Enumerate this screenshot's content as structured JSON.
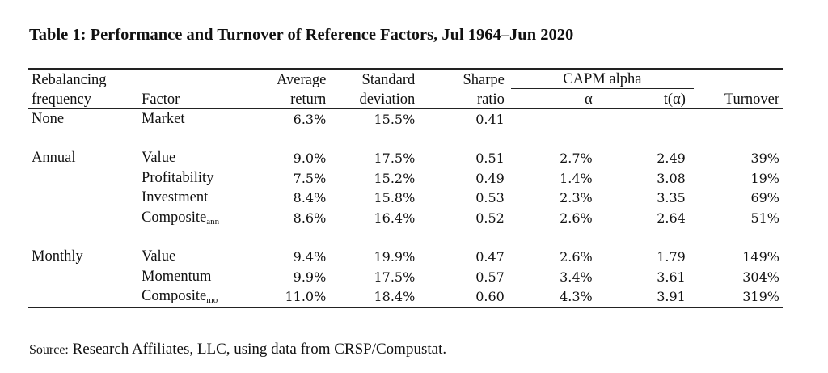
{
  "title": "Table 1: Performance and Turnover of Reference Factors, Jul 1964–Jun 2020",
  "headers": {
    "rebalancing_line1": "Rebalancing",
    "rebalancing_line2": "frequency",
    "factor": "Factor",
    "avg_line1": "Average",
    "avg_line2": "return",
    "std_line1": "Standard",
    "std_line2": "deviation",
    "sharpe_line1": "Sharpe",
    "sharpe_line2": "ratio",
    "capm": "CAPM alpha",
    "alpha": "α",
    "talpha": "t(α)",
    "turnover": "Turnover"
  },
  "rows": [
    {
      "freq": "None",
      "factor": "Market",
      "sub": "",
      "avg": "6.3%",
      "std": "15.5%",
      "sharpe": "0.41",
      "alpha": "",
      "t": "",
      "turnover": ""
    },
    {
      "freq": "Annual",
      "factor": "Value",
      "sub": "",
      "avg": "9.0%",
      "std": "17.5%",
      "sharpe": "0.51",
      "alpha": "2.7%",
      "t": "2.49",
      "turnover": "39%"
    },
    {
      "freq": "",
      "factor": "Profitability",
      "sub": "",
      "avg": "7.5%",
      "std": "15.2%",
      "sharpe": "0.49",
      "alpha": "1.4%",
      "t": "3.08",
      "turnover": "19%"
    },
    {
      "freq": "",
      "factor": "Investment",
      "sub": "",
      "avg": "8.4%",
      "std": "15.8%",
      "sharpe": "0.53",
      "alpha": "2.3%",
      "t": "3.35",
      "turnover": "69%"
    },
    {
      "freq": "",
      "factor": "Composite",
      "sub": "ann",
      "avg": "8.6%",
      "std": "16.4%",
      "sharpe": "0.52",
      "alpha": "2.6%",
      "t": "2.64",
      "turnover": "51%"
    },
    {
      "freq": "Monthly",
      "factor": "Value",
      "sub": "",
      "avg": "9.4%",
      "std": "19.9%",
      "sharpe": "0.47",
      "alpha": "2.6%",
      "t": "1.79",
      "turnover": "149%"
    },
    {
      "freq": "",
      "factor": "Momentum",
      "sub": "",
      "avg": "9.9%",
      "std": "17.5%",
      "sharpe": "0.57",
      "alpha": "3.4%",
      "t": "3.61",
      "turnover": "304%"
    },
    {
      "freq": "",
      "factor": "Composite",
      "sub": "mo",
      "avg": "11.0%",
      "std": "18.4%",
      "sharpe": "0.60",
      "alpha": "4.3%",
      "t": "3.91",
      "turnover": "319%"
    }
  ],
  "source_prefix": "Source:",
  "source_text": " Research Affiliates, LLC, using data from CRSP/Compustat."
}
